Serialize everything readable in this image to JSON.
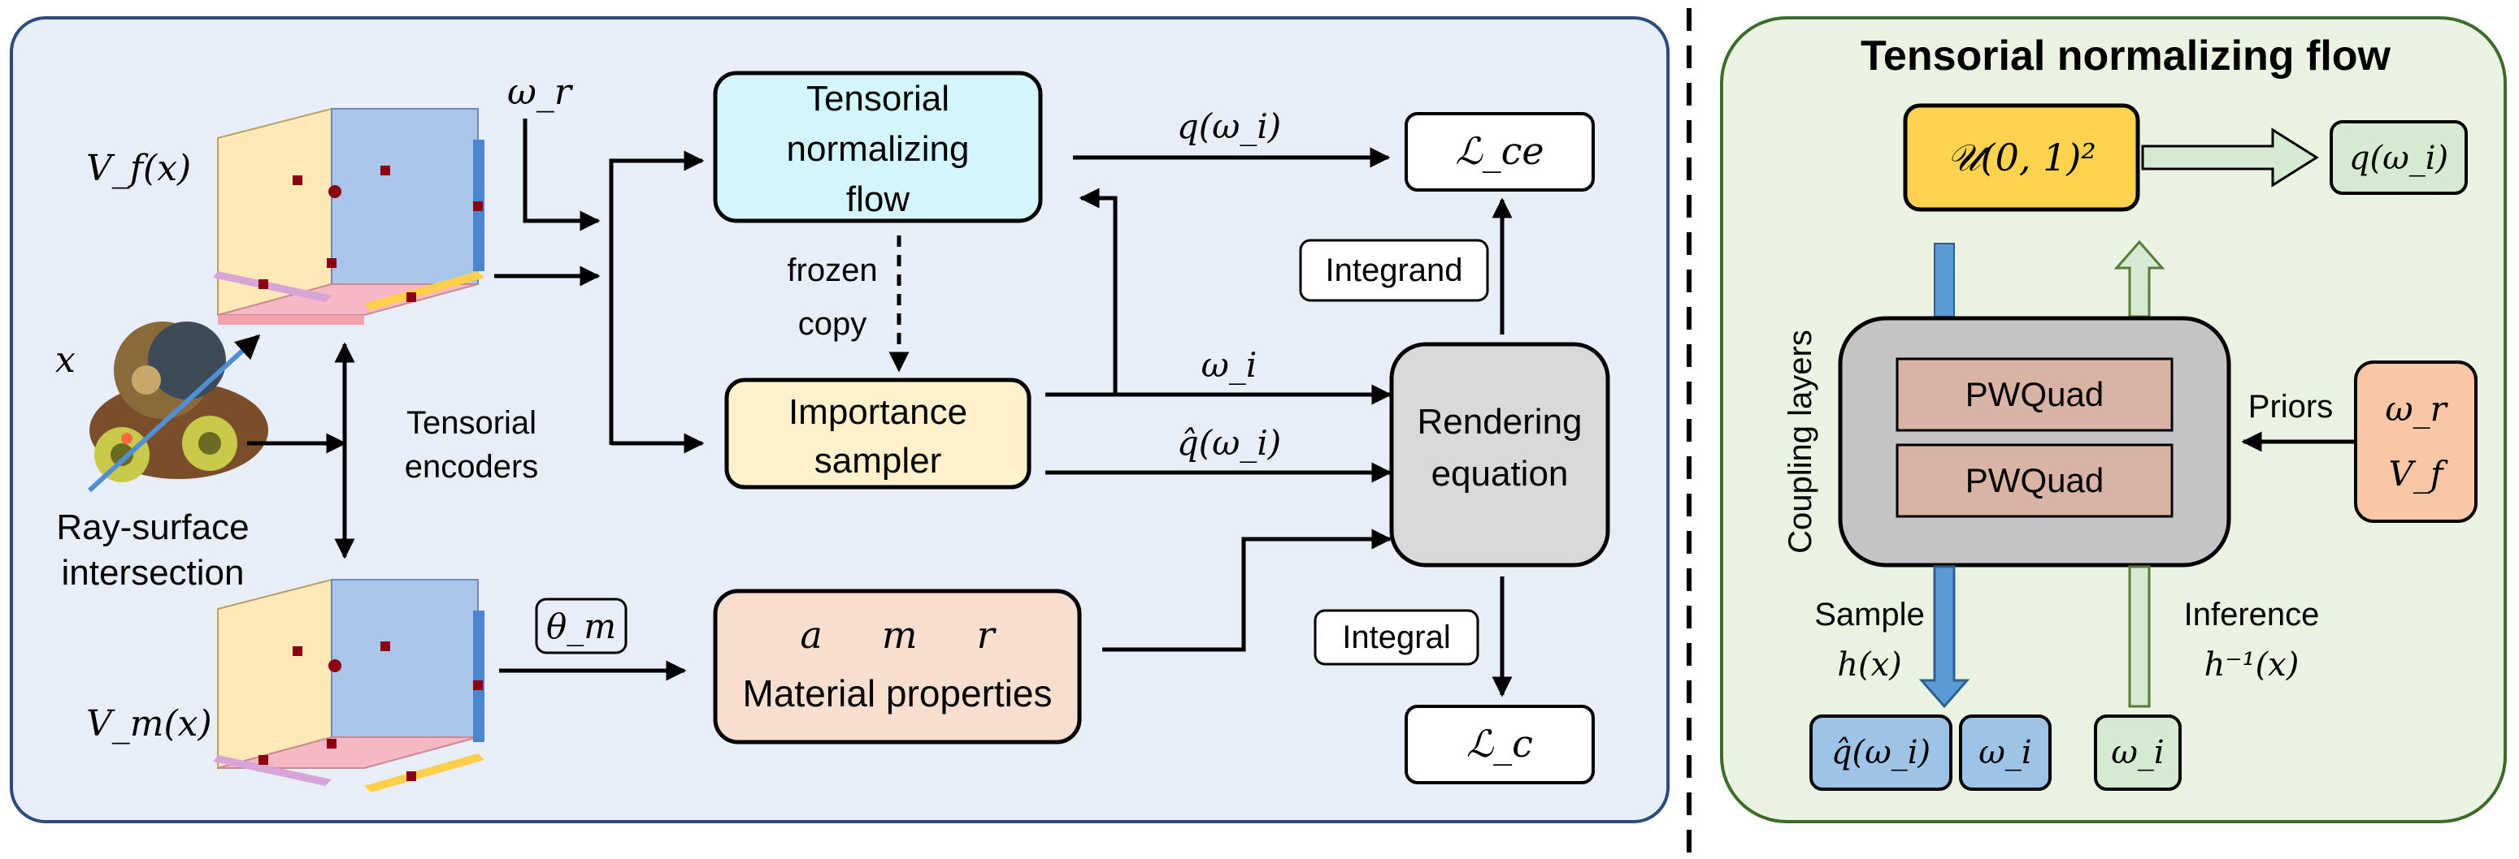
{
  "left_panel": {
    "volume_top": "V_f(x)",
    "volume_bottom": "V_m(x)",
    "position_label": "x",
    "ray_label_line1": "Ray-surface",
    "ray_label_line2": "intersection",
    "encoder_line1": "Tensorial",
    "encoder_line2": "encoders",
    "omega_r": "ω_r",
    "theta_m": "θ_m",
    "tnf_line1": "Tensorial",
    "tnf_line2": "normalizing",
    "tnf_line3": "flow",
    "frozen_line1": "frozen",
    "frozen_line2": "copy",
    "importance_line1": "Importance",
    "importance_line2": "sampler",
    "material_params": "a     m     r",
    "material_label": "Material properties",
    "q_omega": "q(ω_i)",
    "omega_i": "ω_i",
    "qhat_omega": "q̂(ω_i)",
    "integrand": "Integrand",
    "integral": "Integral",
    "render_line1": "Rendering",
    "render_line2": "equation",
    "loss_ce": "ℒ_ce",
    "loss_c": "ℒ_c"
  },
  "right_panel": {
    "title": "Tensorial normalizing flow",
    "uniform": "𝒰(0, 1)²",
    "q_out": "q(ω_i)",
    "coupling": "Coupling layers",
    "layer1": "PWQuad",
    "layer2": "PWQuad",
    "priors": "Priors",
    "prior_omega": "ω_r",
    "prior_V": "V_f",
    "sample_label": "Sample",
    "sample_fn": "h(x)",
    "inference_label": "Inference",
    "inference_fn": "h⁻¹(x)",
    "out_qhat": "q̂(ω_i)",
    "out_omega1": "ω_i",
    "out_omega2": "ω_i"
  },
  "colors": {
    "left_bg": "#e8eef8",
    "right_bg": "#eaf3e2",
    "panel_border_left": "#2c4a7a",
    "panel_border_right": "#3c6b2a",
    "tnf_fill": "#d4f6fb",
    "importance_fill": "#fff1cc",
    "material_fill": "#f6dfcf",
    "render_fill": "#d9d9d9",
    "uniform_fill": "#ffd34d",
    "out_green": "#d5ead0",
    "out_blue": "#9dc3e6",
    "priors_fill": "#f8c7a5",
    "pwquad_fill": "#d9b3a3",
    "coupling_fill": "#c4c4c4"
  }
}
